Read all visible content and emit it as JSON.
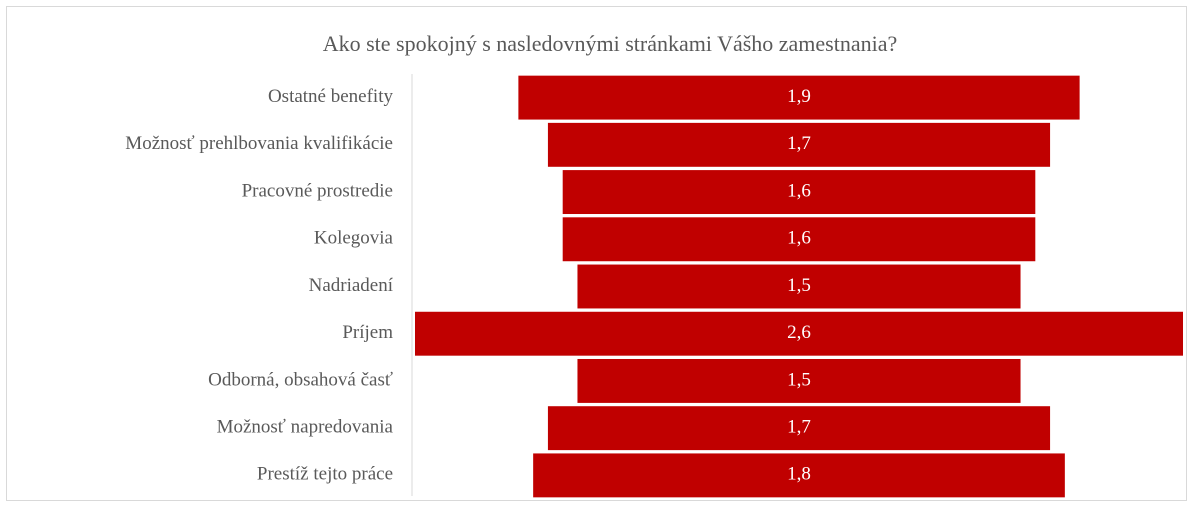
{
  "chart_data": {
    "type": "funnel",
    "title": "Ako ste spokojný s nasledovnými stránkami Vášho zamestnania?",
    "categories": [
      "Ostatné benefity",
      "Možnosť prehlbovania kvalifikácie",
      "Pracovné prostredie",
      "Kolegovia",
      "Nadriadení",
      "Príjem",
      "Odborná, obsahová časť",
      "Možnosť napredovania",
      "Prestíž tejto práce"
    ],
    "values": [
      1.9,
      1.7,
      1.6,
      1.6,
      1.5,
      2.6,
      1.5,
      1.7,
      1.8
    ],
    "value_labels": [
      "1,9",
      "1,7",
      "1,6",
      "1,6",
      "1,5",
      "2,6",
      "1,5",
      "1,7",
      "1,8"
    ],
    "color": "#c00000"
  }
}
